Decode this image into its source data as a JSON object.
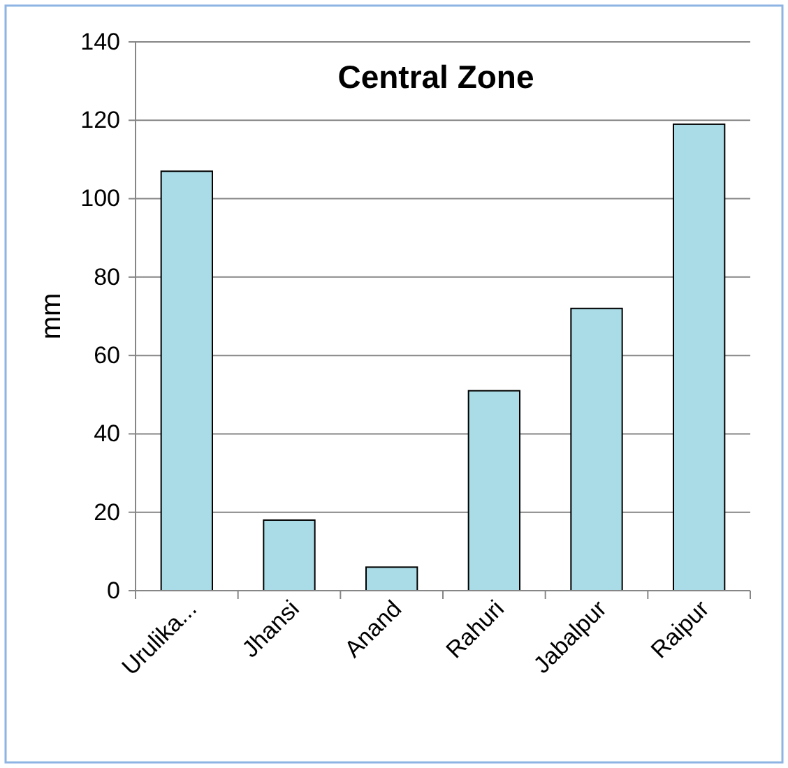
{
  "chart_data": {
    "type": "bar",
    "title": "Central Zone",
    "ylabel": "mm",
    "categories": [
      "Urulika...",
      "Jhansi",
      "Anand",
      "Rahuri",
      "Jabalpur",
      "Raipur"
    ],
    "values": [
      107,
      18,
      6,
      51,
      72,
      119
    ],
    "color": "#a9dce6",
    "ylim": [
      0,
      140
    ],
    "yticks": [
      0,
      20,
      40,
      60,
      80,
      100,
      120,
      140
    ],
    "grid": "y"
  }
}
